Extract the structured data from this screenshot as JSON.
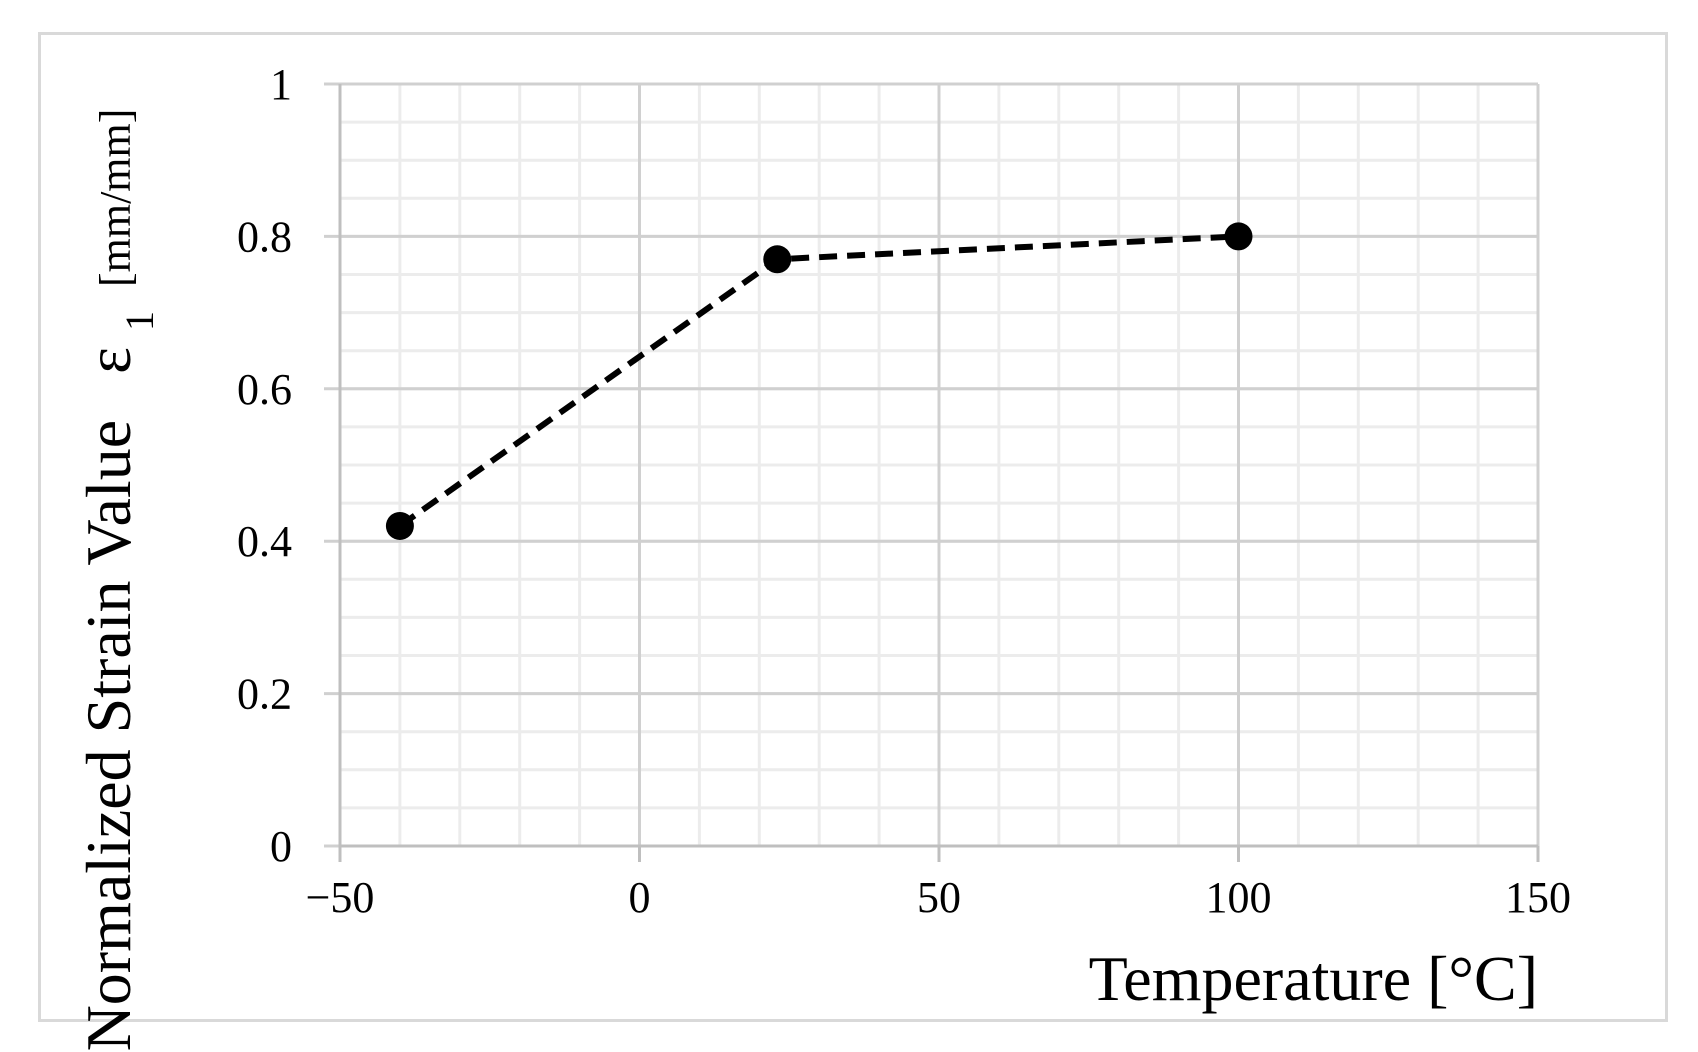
{
  "chart_data": {
    "type": "line",
    "xlabel": "Temperature [°C]",
    "ylabel_main": "Normalized Strain Value",
    "ylabel_symbol": "ε",
    "ylabel_subscript": "1",
    "ylabel_unit": "[mm/mm]",
    "xlim": [
      -50,
      150
    ],
    "ylim": [
      0,
      1
    ],
    "x_ticks": [
      -50,
      0,
      50,
      100,
      150
    ],
    "x_tick_labels": [
      "−50",
      "0",
      "50",
      "100",
      "150"
    ],
    "y_ticks": [
      0,
      0.2,
      0.4,
      0.6,
      0.8,
      1
    ],
    "y_tick_labels": [
      "0",
      "0.2",
      "0.4",
      "0.6",
      "0.8",
      "1"
    ],
    "x_minor_step": 10,
    "y_minor_step": 0.05,
    "grid": true,
    "series": [
      {
        "x": [
          -40,
          23,
          100
        ],
        "y": [
          0.42,
          0.77,
          0.8
        ],
        "line_style": "dashed",
        "marker": "circle",
        "color": "#000000"
      }
    ],
    "colors": {
      "major_grid": "#d0d0d0",
      "minor_grid": "#ececec",
      "axis": "#bfbfbf",
      "frame": "#d9d9d9"
    }
  }
}
